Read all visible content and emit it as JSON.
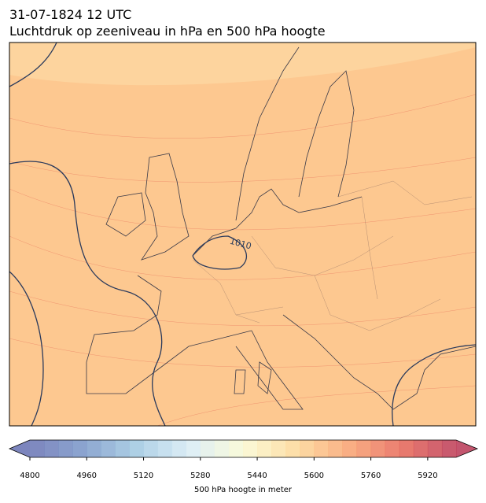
{
  "title": "31-07-1824 12 UTC",
  "subtitle": "Luchtdruk op zeeniveau in hPa en 500 hPa hoogte",
  "contour_labels": [
    "1010"
  ],
  "colorbar": {
    "label": "500 hPa hoogte in meter",
    "clim": [
      4800,
      6000
    ],
    "ticks": [
      4800,
      4960,
      5120,
      5280,
      5440,
      5600,
      5760,
      5920
    ]
  }
}
